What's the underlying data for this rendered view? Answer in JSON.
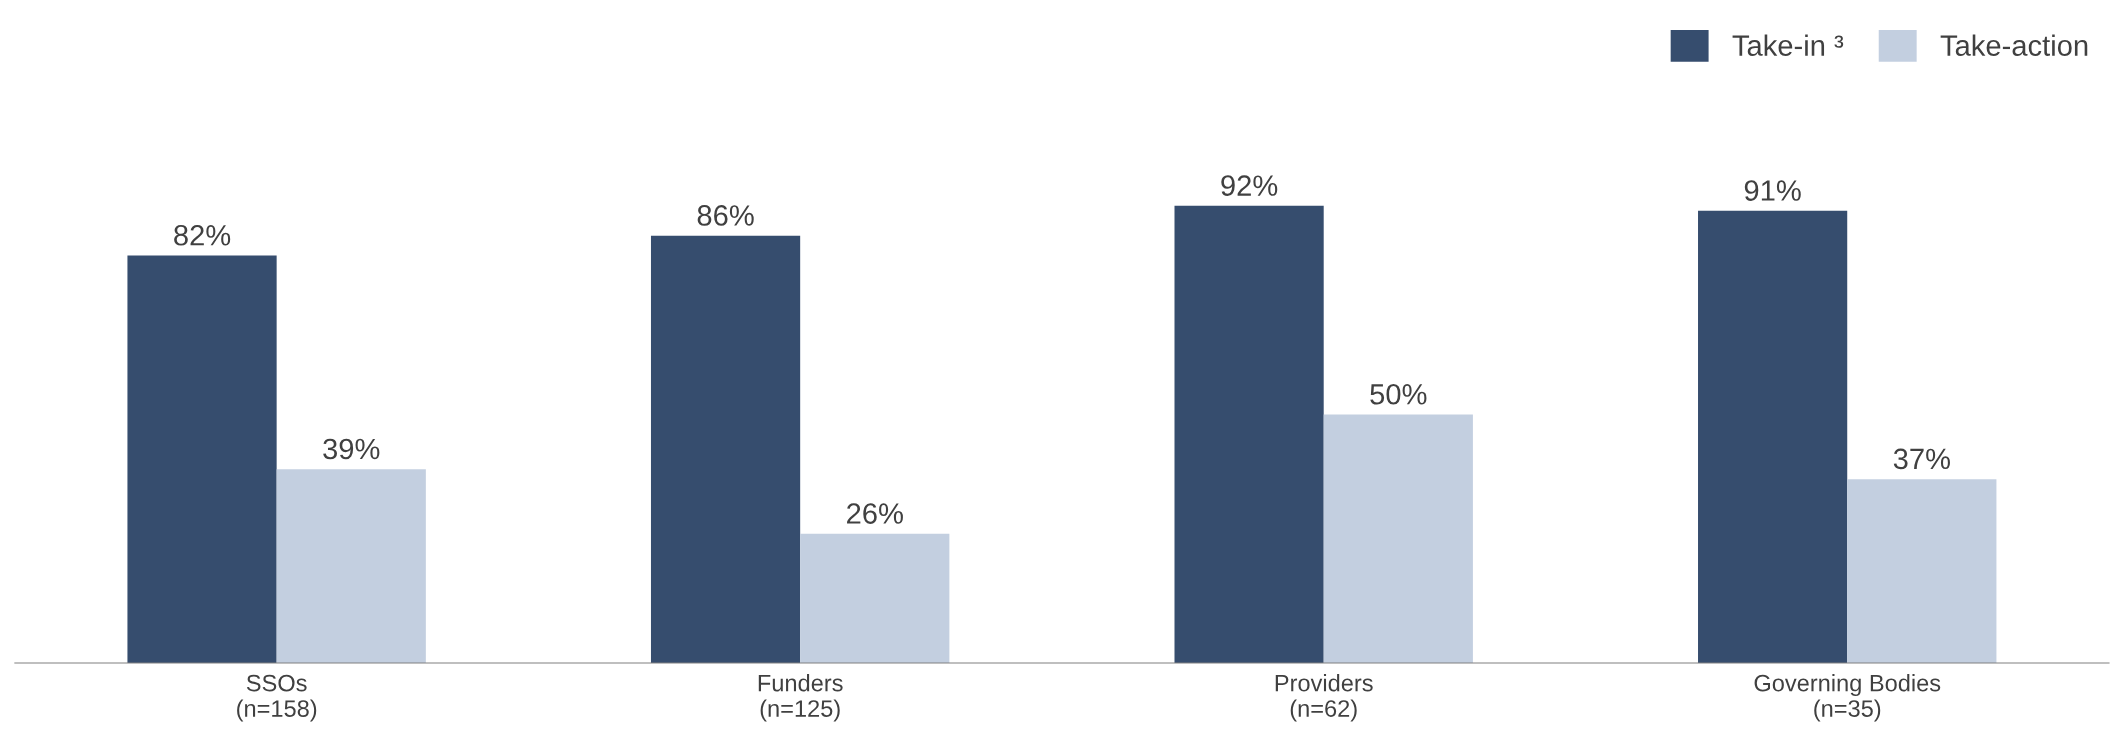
{
  "chart_data": {
    "type": "bar",
    "categories": [
      "SSOs\n(n=158)",
      "Funders\n(n=125)",
      "Providers\n(n=62)",
      "Governing Bodies\n(n=35)"
    ],
    "series": [
      {
        "name": "Take-in ³",
        "color": "#364d6e",
        "values": [
          82,
          86,
          92,
          91
        ],
        "value_labels": [
          "82%",
          "86%",
          "92%",
          "91%"
        ]
      },
      {
        "name": "Take-action",
        "color": "#c3cfe0",
        "values": [
          39,
          26,
          50,
          37
        ],
        "value_labels": [
          "39%",
          "26%",
          "50%",
          "37%"
        ]
      }
    ],
    "legend": "top right",
    "grid": false
  }
}
